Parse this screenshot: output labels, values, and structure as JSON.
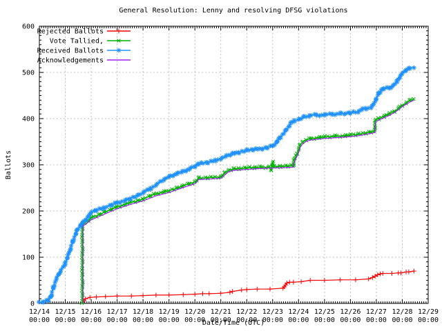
{
  "chart_data": {
    "type": "line",
    "title": "General Resolution: Lenny and resolving DFSG violations",
    "xlabel": "Date/Time (UTC)",
    "ylabel": "Ballots",
    "ylim": [
      0,
      600
    ],
    "y_ticks": [
      0,
      100,
      200,
      300,
      400,
      500,
      600
    ],
    "x_ticks": [
      {
        "date": "12/14",
        "time": "00:00"
      },
      {
        "date": "12/15",
        "time": "00:00"
      },
      {
        "date": "12/16",
        "time": "00:00"
      },
      {
        "date": "12/17",
        "time": "00:00"
      },
      {
        "date": "12/18",
        "time": "00:00"
      },
      {
        "date": "12/19",
        "time": "00:00"
      },
      {
        "date": "12/20",
        "time": "00:00"
      },
      {
        "date": "12/21",
        "time": "00:00"
      },
      {
        "date": "12/22",
        "time": "00:00"
      },
      {
        "date": "12/23",
        "time": "00:00"
      },
      {
        "date": "12/24",
        "time": "00:00"
      },
      {
        "date": "12/25",
        "time": "00:00"
      },
      {
        "date": "12/26",
        "time": "00:00"
      },
      {
        "date": "12/27",
        "time": "00:00"
      },
      {
        "date": "12/28",
        "time": "00:00"
      },
      {
        "date": "12/29",
        "time": "00:00"
      }
    ],
    "x_axis_note": "x values below are days after 12/14 00:00 UTC",
    "grid": true,
    "legend_position": "top-left",
    "series": [
      {
        "name": "Rejected Ballots",
        "color": "#ff0000",
        "marker": "plus",
        "marker_density": "sparse",
        "points": [
          [
            1.72,
            6
          ],
          [
            1.78,
            10
          ],
          [
            1.95,
            13
          ],
          [
            2.2,
            14
          ],
          [
            2.55,
            15
          ],
          [
            3.0,
            16
          ],
          [
            3.55,
            16
          ],
          [
            4.0,
            17
          ],
          [
            4.5,
            18
          ],
          [
            5.0,
            18
          ],
          [
            5.55,
            19
          ],
          [
            6.0,
            20
          ],
          [
            6.3,
            21
          ],
          [
            6.55,
            21
          ],
          [
            7.0,
            22
          ],
          [
            7.35,
            24
          ],
          [
            7.45,
            26
          ],
          [
            7.8,
            29
          ],
          [
            8.0,
            30
          ],
          [
            8.4,
            31
          ],
          [
            8.9,
            31
          ],
          [
            9.4,
            33
          ],
          [
            9.45,
            36
          ],
          [
            9.5,
            40
          ],
          [
            9.55,
            44
          ],
          [
            9.65,
            46
          ],
          [
            9.8,
            46
          ],
          [
            10.1,
            47
          ],
          [
            10.45,
            50
          ],
          [
            11.0,
            50
          ],
          [
            11.6,
            51
          ],
          [
            12.2,
            51
          ],
          [
            12.7,
            53
          ],
          [
            12.85,
            56
          ],
          [
            12.95,
            59
          ],
          [
            13.05,
            62
          ],
          [
            13.15,
            64
          ],
          [
            13.25,
            65
          ],
          [
            13.6,
            65
          ],
          [
            13.85,
            66
          ],
          [
            13.95,
            66
          ],
          [
            14.15,
            68
          ],
          [
            14.25,
            68
          ],
          [
            14.45,
            70
          ]
        ]
      },
      {
        "name": "Vote Tallied,",
        "color": "#00b000",
        "marker": "cross",
        "marker_density": "dense",
        "points": [
          [
            1.66,
            0
          ],
          [
            1.66,
            171
          ],
          [
            1.75,
            174
          ],
          [
            1.9,
            180
          ],
          [
            2.0,
            185
          ],
          [
            2.3,
            192
          ],
          [
            2.5,
            197
          ],
          [
            2.8,
            204
          ],
          [
            3.0,
            209
          ],
          [
            3.3,
            214
          ],
          [
            3.5,
            218
          ],
          [
            3.8,
            222
          ],
          [
            4.0,
            226
          ],
          [
            4.3,
            233
          ],
          [
            4.5,
            237
          ],
          [
            4.8,
            241
          ],
          [
            5.0,
            244
          ],
          [
            5.3,
            249
          ],
          [
            5.5,
            254
          ],
          [
            5.8,
            259
          ],
          [
            6.0,
            263
          ],
          [
            6.15,
            271
          ],
          [
            6.5,
            272
          ],
          [
            7.0,
            274
          ],
          [
            7.15,
            282
          ],
          [
            7.3,
            288
          ],
          [
            7.5,
            291
          ],
          [
            7.7,
            292
          ],
          [
            8.0,
            293
          ],
          [
            8.3,
            294
          ],
          [
            8.6,
            295
          ],
          [
            8.85,
            295
          ],
          [
            8.95,
            289
          ],
          [
            9.0,
            306
          ],
          [
            9.05,
            296
          ],
          [
            9.3,
            297
          ],
          [
            9.6,
            297
          ],
          [
            9.8,
            298
          ],
          [
            9.82,
            310
          ],
          [
            9.95,
            325
          ],
          [
            10.05,
            342
          ],
          [
            10.15,
            349
          ],
          [
            10.3,
            354
          ],
          [
            10.5,
            357
          ],
          [
            10.8,
            359
          ],
          [
            11.0,
            360
          ],
          [
            11.4,
            362
          ],
          [
            11.8,
            363
          ],
          [
            12.0,
            364
          ],
          [
            12.3,
            366
          ],
          [
            12.6,
            369
          ],
          [
            12.8,
            371
          ],
          [
            12.93,
            373
          ],
          [
            12.96,
            396
          ],
          [
            13.1,
            400
          ],
          [
            13.3,
            405
          ],
          [
            13.5,
            410
          ],
          [
            13.7,
            416
          ],
          [
            13.85,
            422
          ],
          [
            14.0,
            429
          ],
          [
            14.15,
            434
          ],
          [
            14.3,
            439
          ],
          [
            14.45,
            443
          ]
        ]
      },
      {
        "name": "Received Ballots",
        "color": "#1e90ff",
        "marker": "asterisk",
        "marker_density": "dense",
        "points": [
          [
            0,
            2
          ],
          [
            0.15,
            4
          ],
          [
            0.35,
            7
          ],
          [
            0.45,
            15
          ],
          [
            0.55,
            35
          ],
          [
            0.65,
            52
          ],
          [
            0.8,
            68
          ],
          [
            1.0,
            86
          ],
          [
            1.15,
            110
          ],
          [
            1.3,
            135
          ],
          [
            1.45,
            157
          ],
          [
            1.6,
            170
          ],
          [
            1.66,
            173
          ],
          [
            1.8,
            182
          ],
          [
            2.0,
            196
          ],
          [
            2.2,
            202
          ],
          [
            2.5,
            207
          ],
          [
            2.8,
            213
          ],
          [
            3.0,
            218
          ],
          [
            3.3,
            222
          ],
          [
            3.5,
            227
          ],
          [
            3.8,
            233
          ],
          [
            4.0,
            240
          ],
          [
            4.3,
            249
          ],
          [
            4.5,
            256
          ],
          [
            4.8,
            268
          ],
          [
            5.0,
            274
          ],
          [
            5.3,
            281
          ],
          [
            5.5,
            284
          ],
          [
            5.8,
            291
          ],
          [
            6.0,
            297
          ],
          [
            6.15,
            302
          ],
          [
            6.5,
            305
          ],
          [
            6.8,
            310
          ],
          [
            7.0,
            313
          ],
          [
            7.2,
            318
          ],
          [
            7.45,
            324
          ],
          [
            7.7,
            327
          ],
          [
            8.0,
            331
          ],
          [
            8.25,
            333
          ],
          [
            8.6,
            335
          ],
          [
            8.8,
            337
          ],
          [
            9.0,
            341
          ],
          [
            9.15,
            348
          ],
          [
            9.3,
            360
          ],
          [
            9.5,
            373
          ],
          [
            9.7,
            390
          ],
          [
            9.85,
            396
          ],
          [
            10.0,
            398
          ],
          [
            10.2,
            403
          ],
          [
            10.4,
            406
          ],
          [
            10.7,
            408
          ],
          [
            11.0,
            408
          ],
          [
            11.3,
            409
          ],
          [
            11.6,
            411
          ],
          [
            12.0,
            412
          ],
          [
            12.3,
            415
          ],
          [
            12.45,
            420
          ],
          [
            12.6,
            422
          ],
          [
            12.8,
            424
          ],
          [
            12.9,
            431
          ],
          [
            13.0,
            443
          ],
          [
            13.1,
            455
          ],
          [
            13.2,
            462
          ],
          [
            13.3,
            465
          ],
          [
            13.5,
            466
          ],
          [
            13.65,
            471
          ],
          [
            13.8,
            481
          ],
          [
            13.9,
            489
          ],
          [
            14.0,
            497
          ],
          [
            14.15,
            505
          ],
          [
            14.3,
            509
          ],
          [
            14.45,
            512
          ]
        ]
      },
      {
        "name": "Acknowledgements",
        "color": "#a020f0",
        "marker": "none",
        "marker_density": "none",
        "points": [
          [
            1.68,
            0
          ],
          [
            1.68,
            168
          ],
          [
            1.8,
            172
          ],
          [
            2.0,
            181
          ],
          [
            2.3,
            188
          ],
          [
            2.5,
            193
          ],
          [
            3.0,
            205
          ],
          [
            3.5,
            214
          ],
          [
            4.0,
            222
          ],
          [
            4.5,
            233
          ],
          [
            5.0,
            240
          ],
          [
            5.5,
            250
          ],
          [
            6.0,
            259
          ],
          [
            6.15,
            268
          ],
          [
            6.5,
            269
          ],
          [
            7.0,
            271
          ],
          [
            7.3,
            285
          ],
          [
            7.5,
            288
          ],
          [
            8.0,
            290
          ],
          [
            8.5,
            292
          ],
          [
            9.0,
            293
          ],
          [
            9.5,
            294
          ],
          [
            9.8,
            295
          ],
          [
            9.84,
            307
          ],
          [
            9.97,
            322
          ],
          [
            10.07,
            339
          ],
          [
            10.17,
            346
          ],
          [
            10.3,
            351
          ],
          [
            10.5,
            354
          ],
          [
            11.0,
            357
          ],
          [
            11.5,
            359
          ],
          [
            12.0,
            361
          ],
          [
            12.3,
            363
          ],
          [
            12.6,
            366
          ],
          [
            12.8,
            368
          ],
          [
            12.94,
            370
          ],
          [
            12.97,
            393
          ],
          [
            13.1,
            397
          ],
          [
            13.3,
            402
          ],
          [
            13.5,
            407
          ],
          [
            13.7,
            413
          ],
          [
            13.85,
            419
          ],
          [
            14.0,
            426
          ],
          [
            14.15,
            431
          ],
          [
            14.3,
            436
          ],
          [
            14.45,
            440
          ]
        ]
      }
    ]
  }
}
